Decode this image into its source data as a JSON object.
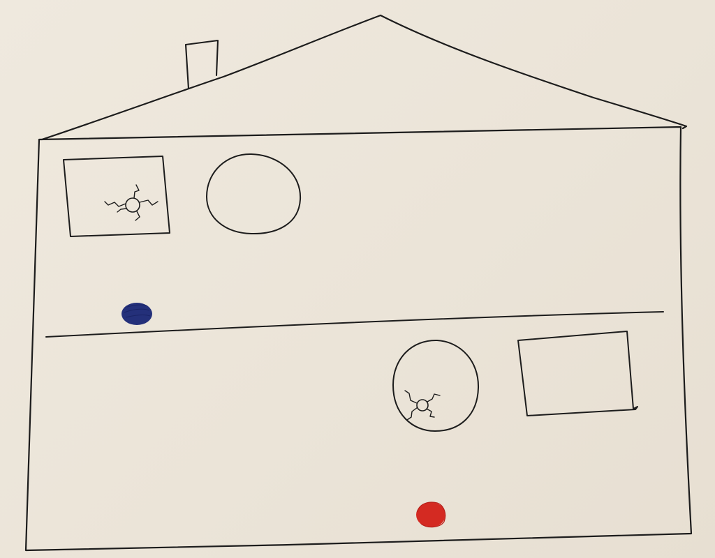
{
  "ink_color": "#1c1c1c",
  "paper_color": "#ece6da",
  "rooms": [
    {
      "floor": "upper",
      "window": {
        "shape": "rectangle",
        "has_spider": true
      },
      "round_window": {
        "shape": "circle",
        "has_spider": false
      },
      "ball": {
        "color": "#24307a",
        "color_name": "blue"
      }
    },
    {
      "floor": "lower",
      "window": {
        "shape": "rectangle",
        "has_spider": false
      },
      "round_window": {
        "shape": "circle",
        "has_spider": true
      },
      "ball": {
        "color": "#d42a22",
        "color_name": "red"
      }
    }
  ],
  "roof": {
    "has_chimney": true
  }
}
